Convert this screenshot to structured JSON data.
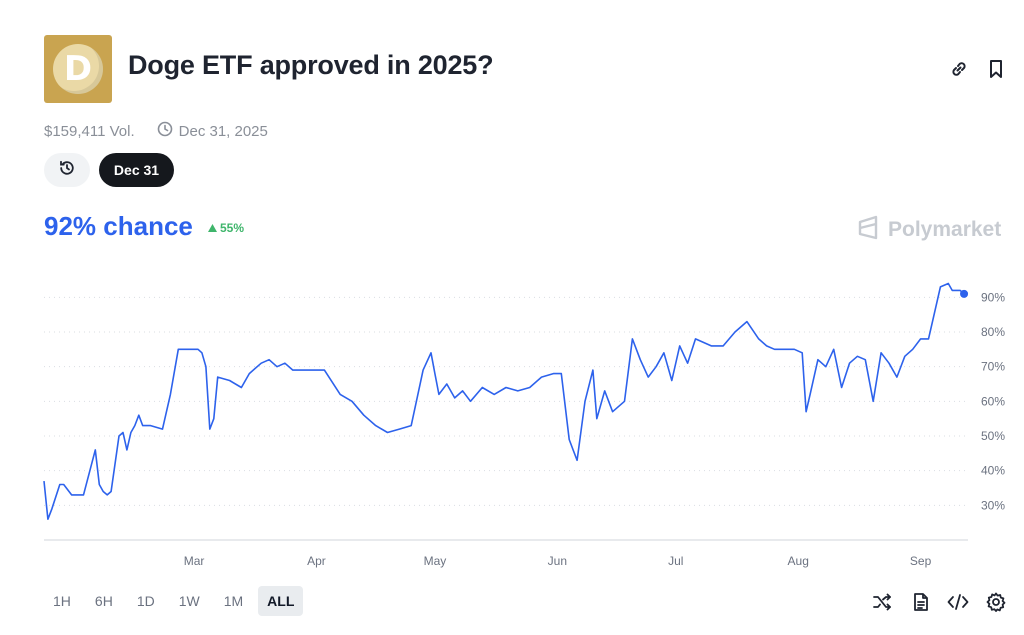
{
  "market": {
    "title": "Doge ETF approved in 2025?",
    "logo_letter": "D",
    "volume": "$159,411 Vol.",
    "end_date": "Dec 31, 2025"
  },
  "filters": {
    "date_pill": "Dec 31"
  },
  "probability": {
    "chance_value": "92%",
    "chance_word": "chance",
    "delta": "55%",
    "delta_color": "#3fb56b",
    "accent_color": "#2d62ec"
  },
  "brand": {
    "name": "Polymarket"
  },
  "time_ranges": [
    "1H",
    "6H",
    "1D",
    "1W",
    "1M",
    "ALL"
  ],
  "active_range": "ALL",
  "icons": {
    "top": [
      "link-icon",
      "bookmark-icon"
    ],
    "bottom": [
      "shuffle-icon",
      "document-icon",
      "embed-code-icon",
      "settings-icon"
    ]
  },
  "chart_data": {
    "type": "line",
    "title": "",
    "xlabel": "",
    "ylabel": "",
    "ylim": [
      20,
      95
    ],
    "xlim": [
      "2025-01-22",
      "2025-09-13"
    ],
    "grid": true,
    "y_ticks": [
      30,
      40,
      50,
      60,
      70,
      80,
      90
    ],
    "y_tick_labels": [
      "30%",
      "40%",
      "50%",
      "60%",
      "70%",
      "80%",
      "90%"
    ],
    "x_ticks": [
      "2025-03-01",
      "2025-04-01",
      "2025-05-01",
      "2025-06-01",
      "2025-07-01",
      "2025-08-01",
      "2025-09-01"
    ],
    "x_tick_labels": [
      "Mar",
      "Apr",
      "May",
      "Jun",
      "Jul",
      "Aug",
      "Sep"
    ],
    "series": [
      {
        "color": "#2d62ec",
        "x": [
          "2025-01-22",
          "2025-01-23",
          "2025-01-24",
          "2025-01-26",
          "2025-01-27",
          "2025-01-29",
          "2025-02-01",
          "2025-02-04",
          "2025-02-05",
          "2025-02-06",
          "2025-02-07",
          "2025-02-08",
          "2025-02-10",
          "2025-02-11",
          "2025-02-12",
          "2025-02-13",
          "2025-02-14",
          "2025-02-15",
          "2025-02-16",
          "2025-02-18",
          "2025-02-21",
          "2025-02-23",
          "2025-02-25",
          "2025-02-28",
          "2025-03-02",
          "2025-03-03",
          "2025-03-04",
          "2025-03-05",
          "2025-03-06",
          "2025-03-07",
          "2025-03-10",
          "2025-03-13",
          "2025-03-15",
          "2025-03-18",
          "2025-03-20",
          "2025-03-22",
          "2025-03-24",
          "2025-03-26",
          "2025-03-28",
          "2025-03-31",
          "2025-04-03",
          "2025-04-07",
          "2025-04-10",
          "2025-04-13",
          "2025-04-16",
          "2025-04-19",
          "2025-04-22",
          "2025-04-25",
          "2025-04-28",
          "2025-04-30",
          "2025-05-01",
          "2025-05-02",
          "2025-05-04",
          "2025-05-06",
          "2025-05-08",
          "2025-05-10",
          "2025-05-13",
          "2025-05-16",
          "2025-05-19",
          "2025-05-22",
          "2025-05-25",
          "2025-05-28",
          "2025-05-31",
          "2025-06-02",
          "2025-06-04",
          "2025-06-05",
          "2025-06-06",
          "2025-06-08",
          "2025-06-10",
          "2025-06-11",
          "2025-06-13",
          "2025-06-15",
          "2025-06-18",
          "2025-06-20",
          "2025-06-22",
          "2025-06-24",
          "2025-06-26",
          "2025-06-28",
          "2025-06-30",
          "2025-07-02",
          "2025-07-04",
          "2025-07-06",
          "2025-07-08",
          "2025-07-10",
          "2025-07-13",
          "2025-07-16",
          "2025-07-19",
          "2025-07-22",
          "2025-07-24",
          "2025-07-26",
          "2025-07-28",
          "2025-07-31",
          "2025-08-02",
          "2025-08-03",
          "2025-08-04",
          "2025-08-06",
          "2025-08-08",
          "2025-08-10",
          "2025-08-12",
          "2025-08-14",
          "2025-08-16",
          "2025-08-18",
          "2025-08-20",
          "2025-08-22",
          "2025-08-24",
          "2025-08-26",
          "2025-08-28",
          "2025-08-30",
          "2025-09-01",
          "2025-09-03",
          "2025-09-04",
          "2025-09-06",
          "2025-09-08",
          "2025-09-09",
          "2025-09-11",
          "2025-09-12"
        ],
        "y": [
          37,
          26,
          29,
          36,
          36,
          33,
          33,
          46,
          36,
          34,
          33,
          34,
          50,
          51,
          46,
          51,
          53,
          56,
          53,
          53,
          52,
          62,
          75,
          75,
          75,
          74,
          70,
          52,
          55,
          67,
          66,
          64,
          68,
          71,
          72,
          70,
          71,
          69,
          69,
          69,
          69,
          62,
          60,
          56,
          53,
          51,
          52,
          53,
          69,
          74,
          68,
          62,
          65,
          61,
          63,
          60,
          64,
          62,
          64,
          63,
          64,
          67,
          68,
          68,
          49,
          46,
          43,
          60,
          69,
          55,
          63,
          57,
          60,
          78,
          72,
          67,
          70,
          74,
          66,
          76,
          71,
          78,
          77,
          76,
          76,
          80,
          83,
          78,
          76,
          75,
          75,
          75,
          74,
          57,
          62,
          72,
          70,
          75,
          64,
          71,
          73,
          72,
          60,
          74,
          71,
          67,
          73,
          75,
          78,
          78,
          83,
          93,
          94,
          92,
          92,
          91
        ]
      }
    ]
  }
}
